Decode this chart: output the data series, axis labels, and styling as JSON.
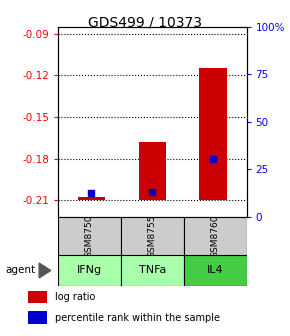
{
  "title": "GDS499 / 10373",
  "samples": [
    "GSM8750",
    "GSM8755",
    "GSM8760"
  ],
  "agents": [
    "IFNg",
    "TNFa",
    "IL4"
  ],
  "log_ratios": [
    -0.208,
    -0.168,
    -0.115
  ],
  "percentile_ranks_pct": [
    4,
    5,
    25
  ],
  "bar_bottom": -0.21,
  "ylim_left": [
    -0.222,
    -0.085
  ],
  "ylim_right": [
    0,
    100
  ],
  "yticks_left": [
    -0.21,
    -0.18,
    -0.15,
    -0.12,
    -0.09
  ],
  "yticks_right": [
    0,
    25,
    50,
    75,
    100
  ],
  "ytick_labels_left": [
    "-0.21",
    "-0.18",
    "-0.15",
    "-0.12",
    "-0.09"
  ],
  "ytick_labels_right": [
    "0",
    "25",
    "50",
    "75",
    "100%"
  ],
  "bar_color": "#cc0000",
  "percentile_color": "#0000cc",
  "sample_box_color": "#cccccc",
  "agent_colors": [
    "#aaffaa",
    "#aaffaa",
    "#44cc44"
  ],
  "bar_width": 0.45
}
